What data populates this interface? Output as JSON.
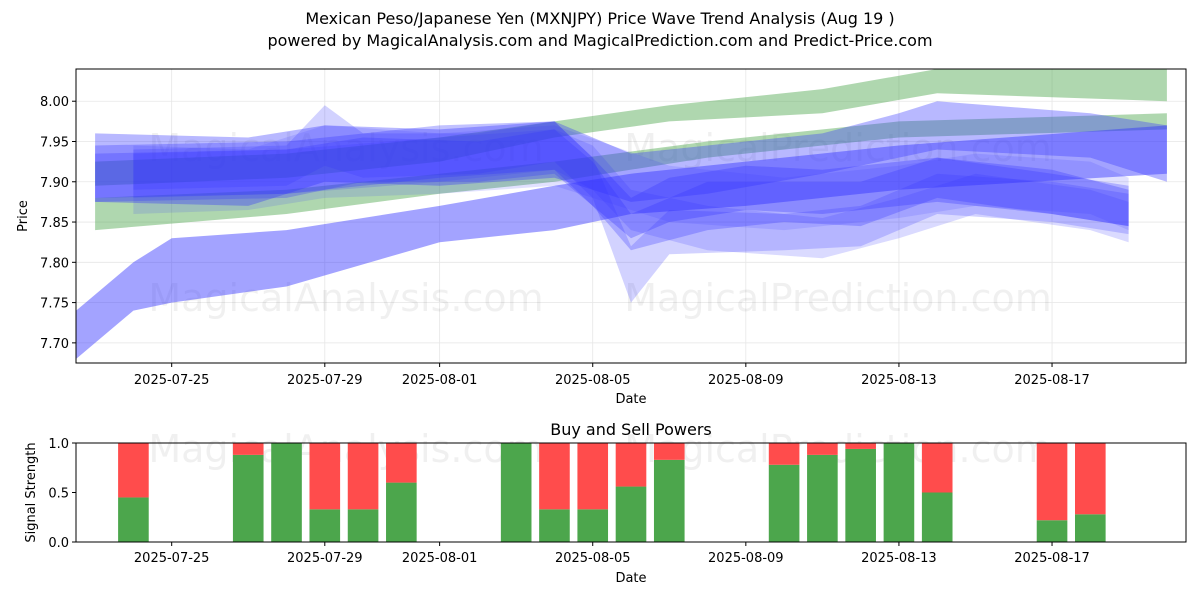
{
  "header": {
    "title": "Mexican Peso/Japanese Yen (MXNJPY) Price Wave Trend Analysis (Aug 19 )",
    "subtitle": "powered by MagicalAnalysis.com and MagicalPrediction.com and Predict-Price.com"
  },
  "watermarks": [
    "MagicalAnalysis.com",
    "MagicalPrediction.com"
  ],
  "colors": {
    "green_band": "#b3d9b0",
    "blue_band": "#5555ff",
    "buy": "#4ca64c",
    "sell": "#ff4c4c"
  },
  "chart_data": [
    {
      "type": "area",
      "title": "",
      "xlabel": "Date",
      "ylabel": "Price",
      "xlim": [
        "2025-07-22T12:00",
        "2025-08-20T12:00"
      ],
      "ylim": [
        7.675,
        8.04
      ],
      "x_ticks": [
        "2025-07-25",
        "2025-07-29",
        "2025-08-01",
        "2025-08-05",
        "2025-08-09",
        "2025-08-13",
        "2025-08-17"
      ],
      "y_ticks": [
        "7.70",
        "7.75",
        "7.80",
        "7.85",
        "7.90",
        "7.95",
        "8.00"
      ],
      "grid": true,
      "series": [
        {
          "color": "green",
          "alpha": 0.45,
          "points": [
            [
              "2025-07-23",
              7.895,
              7.925
            ],
            [
              "2025-07-28",
              7.905,
              7.935
            ],
            [
              "2025-08-01",
              7.925,
              7.955
            ],
            [
              "2025-08-04",
              7.955,
              7.975
            ],
            [
              "2025-08-07",
              7.975,
              7.995
            ],
            [
              "2025-08-11",
              7.985,
              8.015
            ],
            [
              "2025-08-14",
              8.01,
              8.04
            ],
            [
              "2025-08-20",
              8.0,
              8.04
            ]
          ]
        },
        {
          "color": "green",
          "alpha": 0.45,
          "points": [
            [
              "2025-07-23",
              7.84,
              7.88
            ],
            [
              "2025-07-28",
              7.86,
              7.89
            ],
            [
              "2025-08-01",
              7.885,
              7.91
            ],
            [
              "2025-08-04",
              7.9,
              7.925
            ],
            [
              "2025-08-08",
              7.93,
              7.95
            ],
            [
              "2025-08-13",
              7.955,
              7.975
            ],
            [
              "2025-08-20",
              7.965,
              7.985
            ]
          ]
        },
        {
          "color": "blue",
          "alpha": 0.45,
          "points": [
            [
              "2025-07-22",
              7.66,
              7.72
            ],
            [
              "2025-07-24",
              7.74,
              7.8
            ],
            [
              "2025-07-25",
              7.75,
              7.83
            ],
            [
              "2025-07-28",
              7.77,
              7.84
            ],
            [
              "2025-08-01",
              7.825,
              7.87
            ],
            [
              "2025-08-04",
              7.84,
              7.895
            ],
            [
              "2025-08-06",
              7.86,
              7.91
            ],
            [
              "2025-08-09",
              7.87,
              7.925
            ],
            [
              "2025-08-13",
              7.89,
              7.945
            ],
            [
              "2025-08-20",
              7.91,
              7.97
            ]
          ]
        },
        {
          "color": "blue",
          "alpha": 0.35,
          "points": [
            [
              "2025-07-23",
              7.875,
              7.96
            ],
            [
              "2025-07-27",
              7.87,
              7.955
            ],
            [
              "2025-07-29",
              7.9,
              7.97
            ],
            [
              "2025-08-01",
              7.895,
              7.965
            ],
            [
              "2025-08-04",
              7.905,
              7.975
            ],
            [
              "2025-08-06",
              7.875,
              7.935
            ],
            [
              "2025-08-08",
              7.885,
              7.945
            ],
            [
              "2025-08-11",
              7.91,
              7.96
            ],
            [
              "2025-08-13",
              7.93,
              7.985
            ],
            [
              "2025-08-14",
              7.94,
              8.0
            ],
            [
              "2025-08-18",
              7.93,
              7.985
            ],
            [
              "2025-08-20",
              7.9,
              7.97
            ]
          ]
        },
        {
          "color": "blue",
          "alpha": 0.3,
          "points": [
            [
              "2025-07-23",
              7.88,
              7.945
            ],
            [
              "2025-07-28",
              7.885,
              7.95
            ],
            [
              "2025-08-01",
              7.905,
              7.97
            ],
            [
              "2025-08-04",
              7.915,
              7.975
            ],
            [
              "2025-08-05",
              7.87,
              7.93
            ],
            [
              "2025-08-06",
              7.83,
              7.88
            ],
            [
              "2025-08-07",
              7.85,
              7.905
            ],
            [
              "2025-08-09",
              7.865,
              7.92
            ],
            [
              "2025-08-11",
              7.86,
              7.915
            ],
            [
              "2025-08-14",
              7.875,
              7.93
            ],
            [
              "2025-08-17",
              7.86,
              7.915
            ],
            [
              "2025-08-19",
              7.845,
              7.89
            ]
          ]
        },
        {
          "color": "blue",
          "alpha": 0.28,
          "points": [
            [
              "2025-07-23",
              7.875,
              7.935
            ],
            [
              "2025-07-28",
              7.88,
              7.94
            ],
            [
              "2025-07-30",
              7.9,
              7.955
            ],
            [
              "2025-08-02",
              7.9,
              7.95
            ],
            [
              "2025-08-04",
              7.91,
              7.965
            ],
            [
              "2025-08-05",
              7.87,
              7.925
            ],
            [
              "2025-08-06",
              7.815,
              7.86
            ],
            [
              "2025-08-08",
              7.84,
              7.9
            ],
            [
              "2025-08-10",
              7.85,
              7.9
            ],
            [
              "2025-08-12",
              7.845,
              7.9
            ],
            [
              "2025-08-14",
              7.88,
              7.93
            ],
            [
              "2025-08-17",
              7.86,
              7.91
            ],
            [
              "2025-08-19",
              7.845,
              7.895
            ]
          ]
        },
        {
          "color": "blue",
          "alpha": 0.22,
          "points": [
            [
              "2025-07-24",
              7.89,
              7.94
            ],
            [
              "2025-07-28",
              7.895,
              7.945
            ],
            [
              "2025-07-29",
              7.92,
              7.995
            ],
            [
              "2025-07-30",
              7.905,
              7.96
            ],
            [
              "2025-08-02",
              7.91,
              7.96
            ],
            [
              "2025-08-04",
              7.925,
              7.975
            ],
            [
              "2025-08-05",
              7.88,
              7.93
            ],
            [
              "2025-08-06",
              7.75,
              7.82
            ],
            [
              "2025-08-07",
              7.81,
              7.865
            ],
            [
              "2025-08-10",
              7.815,
              7.86
            ],
            [
              "2025-08-12",
              7.82,
              7.87
            ],
            [
              "2025-08-14",
              7.86,
              7.91
            ],
            [
              "2025-08-17",
              7.85,
              7.9
            ],
            [
              "2025-08-19",
              7.835,
              7.885
            ]
          ]
        },
        {
          "color": "blue",
          "alpha": 0.18,
          "points": [
            [
              "2025-07-24",
              7.88,
              7.935
            ],
            [
              "2025-07-28",
              7.885,
              7.94
            ],
            [
              "2025-08-01",
              7.9,
              7.955
            ],
            [
              "2025-08-04",
              7.915,
              7.965
            ],
            [
              "2025-08-05",
              7.89,
              7.945
            ],
            [
              "2025-08-06",
              7.84,
              7.89
            ],
            [
              "2025-08-08",
              7.815,
              7.87
            ],
            [
              "2025-08-11",
              7.805,
              7.855
            ],
            [
              "2025-08-13",
              7.83,
              7.88
            ],
            [
              "2025-08-15",
              7.86,
              7.91
            ],
            [
              "2025-08-18",
              7.84,
              7.89
            ],
            [
              "2025-08-19",
              7.825,
              7.875
            ]
          ]
        },
        {
          "color": "blue",
          "alpha": 0.15,
          "points": [
            [
              "2025-07-24",
              7.86,
              7.945
            ],
            [
              "2025-07-27",
              7.865,
              7.94
            ],
            [
              "2025-07-29",
              7.88,
              7.97
            ],
            [
              "2025-08-01",
              7.885,
              7.96
            ],
            [
              "2025-08-04",
              7.895,
              7.97
            ],
            [
              "2025-08-07",
              7.85,
              7.92
            ],
            [
              "2025-08-10",
              7.84,
              7.905
            ],
            [
              "2025-08-13",
              7.855,
              7.92
            ],
            [
              "2025-08-15",
              7.87,
              7.935
            ],
            [
              "2025-08-18",
              7.86,
              7.925
            ],
            [
              "2025-08-19",
              7.84,
              7.905
            ]
          ]
        }
      ]
    },
    {
      "type": "bar",
      "title": "Buy and Sell Powers",
      "xlabel": "Date",
      "ylabel": "Signal Strength",
      "ylim": [
        0,
        1.0
      ],
      "y_ticks": [
        "0.0",
        "0.5",
        "1.0"
      ],
      "x_ticks": [
        "2025-07-25",
        "2025-07-29",
        "2025-08-01",
        "2025-08-05",
        "2025-08-09",
        "2025-08-13",
        "2025-08-17"
      ],
      "xlim": [
        "2025-07-22T12:00",
        "2025-08-20T12:00"
      ],
      "categories": [
        "2025-07-24",
        "2025-07-27",
        "2025-07-28",
        "2025-07-29",
        "2025-07-30",
        "2025-07-31",
        "2025-08-03",
        "2025-08-04",
        "2025-08-05",
        "2025-08-06",
        "2025-08-07",
        "2025-08-10",
        "2025-08-11",
        "2025-08-12",
        "2025-08-13",
        "2025-08-14",
        "2025-08-17",
        "2025-08-18"
      ],
      "series": [
        {
          "name": "Buy",
          "values": [
            0.45,
            0.88,
            1.0,
            0.33,
            0.33,
            0.6,
            1.0,
            0.33,
            0.33,
            0.56,
            0.83,
            0.78,
            0.88,
            0.94,
            1.0,
            0.5,
            0.22,
            0.28
          ]
        },
        {
          "name": "Sell",
          "values": [
            0.55,
            0.12,
            0.0,
            0.67,
            0.67,
            0.4,
            0.0,
            0.67,
            0.67,
            0.44,
            0.17,
            0.22,
            0.12,
            0.06,
            0.0,
            0.5,
            0.78,
            0.72
          ]
        }
      ]
    }
  ]
}
